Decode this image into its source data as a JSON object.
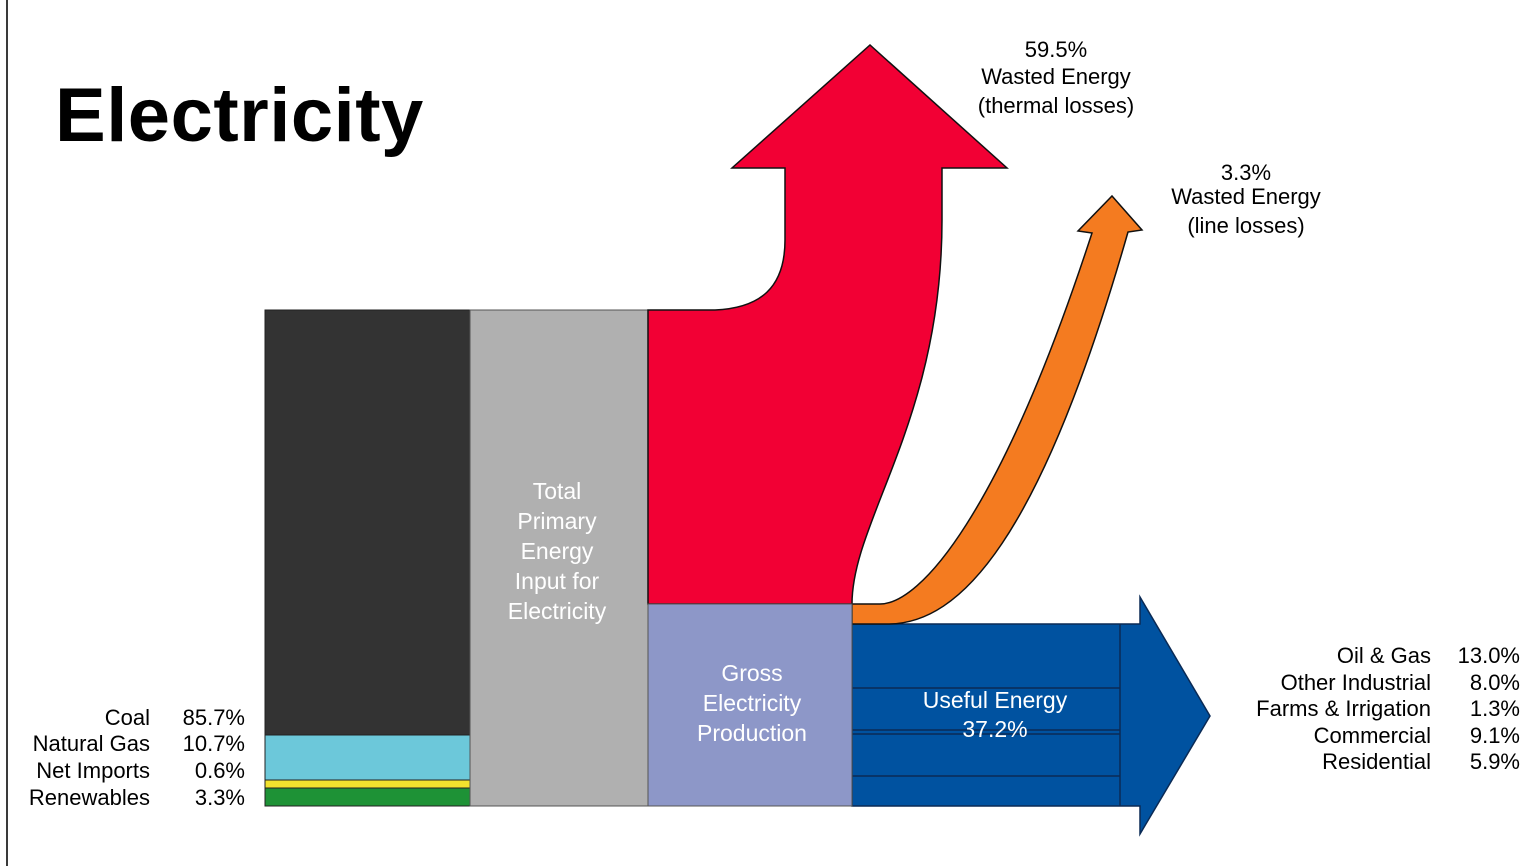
{
  "title": "Electricity",
  "colors": {
    "coal": "#333333",
    "natural_gas": "#6cc8da",
    "net_imports": "#f2e22e",
    "renewables": "#1e9236",
    "total_primary": "#b0b0b0",
    "thermal_losses": "#f20034",
    "line_losses": "#f47b20",
    "gross_production": "#8d97c8",
    "useful_energy": "#0052a0"
  },
  "sources": [
    {
      "name": "Coal",
      "value": "85.7%"
    },
    {
      "name": "Natural Gas",
      "value": "10.7%"
    },
    {
      "name": "Net Imports",
      "value": "0.6%"
    },
    {
      "name": "Renewables",
      "value": "3.3%"
    }
  ],
  "total_primary": [
    "Total",
    "Primary",
    "Energy",
    "Input for",
    "Electricity"
  ],
  "gross": [
    "Gross",
    "Electricity",
    "Production"
  ],
  "thermal": {
    "value": "59.5%",
    "line1": "Wasted Energy",
    "line2": "(thermal losses)"
  },
  "line_loss": {
    "value": "3.3%",
    "line1": "Wasted Energy",
    "line2": "(line losses)"
  },
  "useful": {
    "label": "Useful Energy",
    "value": "37.2%"
  },
  "end_uses": [
    {
      "name": "Oil & Gas",
      "value": "13.0%"
    },
    {
      "name": "Other Industrial",
      "value": "8.0%"
    },
    {
      "name": "Farms & Irrigation",
      "value": "1.3%"
    },
    {
      "name": "Commercial",
      "value": "9.1%"
    },
    {
      "name": "Residential",
      "value": "5.9%"
    }
  ]
}
